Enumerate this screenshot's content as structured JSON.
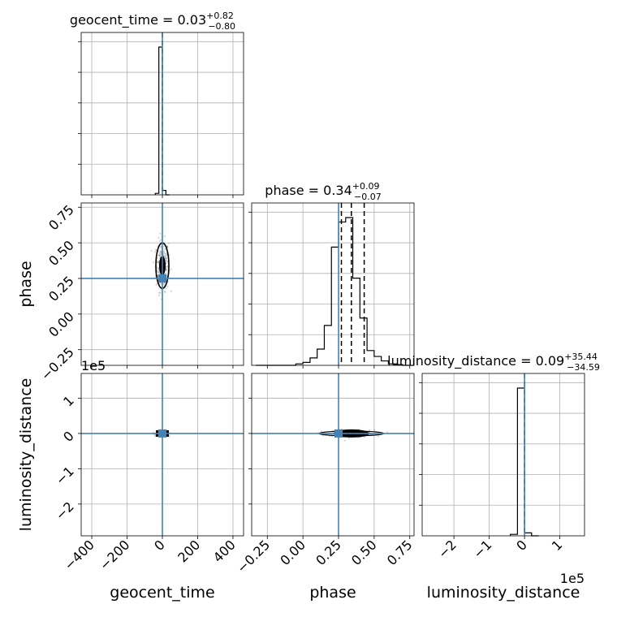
{
  "chart_data": {
    "type": "corner",
    "parameters": [
      "geocent_time",
      "phase",
      "luminosity_distance"
    ],
    "axis_labels": {
      "geocent_time": "geocent_time",
      "phase": "phase",
      "luminosity_distance": "luminosity_distance"
    },
    "titles": {
      "geocent_time": {
        "name": "geocent_time",
        "median": "0.03",
        "plus": "+0.82",
        "minus": "−0.80"
      },
      "phase": {
        "name": "phase",
        "median": "0.34",
        "plus": "+0.09",
        "minus": "−0.07"
      },
      "luminosity_distance": {
        "name": "luminosity_distance",
        "median": "0.09",
        "plus": "+35.44",
        "minus": "−34.59"
      }
    },
    "ranges": {
      "geocent_time": [
        -460,
        460
      ],
      "phase": [
        -0.36,
        0.78
      ],
      "luminosity_distance": [
        -290000,
        170000
      ]
    },
    "ticks": {
      "geocent_time": [
        -400,
        -200,
        0,
        200,
        400
      ],
      "phase": [
        -0.25,
        0.0,
        0.25,
        0.5,
        0.75
      ],
      "luminosity_distance": [
        -200000,
        -100000,
        0,
        100000
      ]
    },
    "tick_labels": {
      "geocent_time": [
        "−400",
        "−200",
        "0",
        "200",
        "400"
      ],
      "phase": [
        "−0.25",
        "0.00",
        "0.25",
        "0.50",
        "0.75"
      ],
      "luminosity_distance": [
        "−2",
        "−1",
        "0",
        "1"
      ]
    },
    "scale_offset": "1e5",
    "truths": {
      "geocent_time": 0,
      "phase": 0.25,
      "luminosity_distance": 0
    },
    "quantiles": {
      "geocent_time": [
        -0.77,
        0.03,
        0.85
      ],
      "phase": [
        0.27,
        0.34,
        0.43
      ],
      "luminosity_distance": [
        -34.5,
        0.09,
        35.53
      ]
    },
    "histograms": {
      "geocent_time": {
        "edges": [
          -40,
          -20,
          0,
          20,
          40
        ],
        "counts": [
          0.01,
          1.0,
          0.03,
          0.0
        ]
      },
      "phase": {
        "edges": [
          -0.33,
          -0.05,
          0.0,
          0.05,
          0.1,
          0.15,
          0.2,
          0.25,
          0.3,
          0.35,
          0.4,
          0.45,
          0.5,
          0.55,
          0.6,
          0.65,
          0.7,
          0.78
        ],
        "counts": [
          0.0,
          0.01,
          0.02,
          0.05,
          0.11,
          0.27,
          0.8,
          0.97,
          1.0,
          0.59,
          0.32,
          0.1,
          0.06,
          0.03,
          0.01,
          0.005,
          0.0
        ]
      },
      "luminosity_distance": {
        "edges": [
          -40000,
          -20000,
          0,
          20000,
          40000
        ],
        "counts": [
          0.01,
          1.0,
          0.02,
          0.0
        ]
      }
    },
    "grid": true
  }
}
